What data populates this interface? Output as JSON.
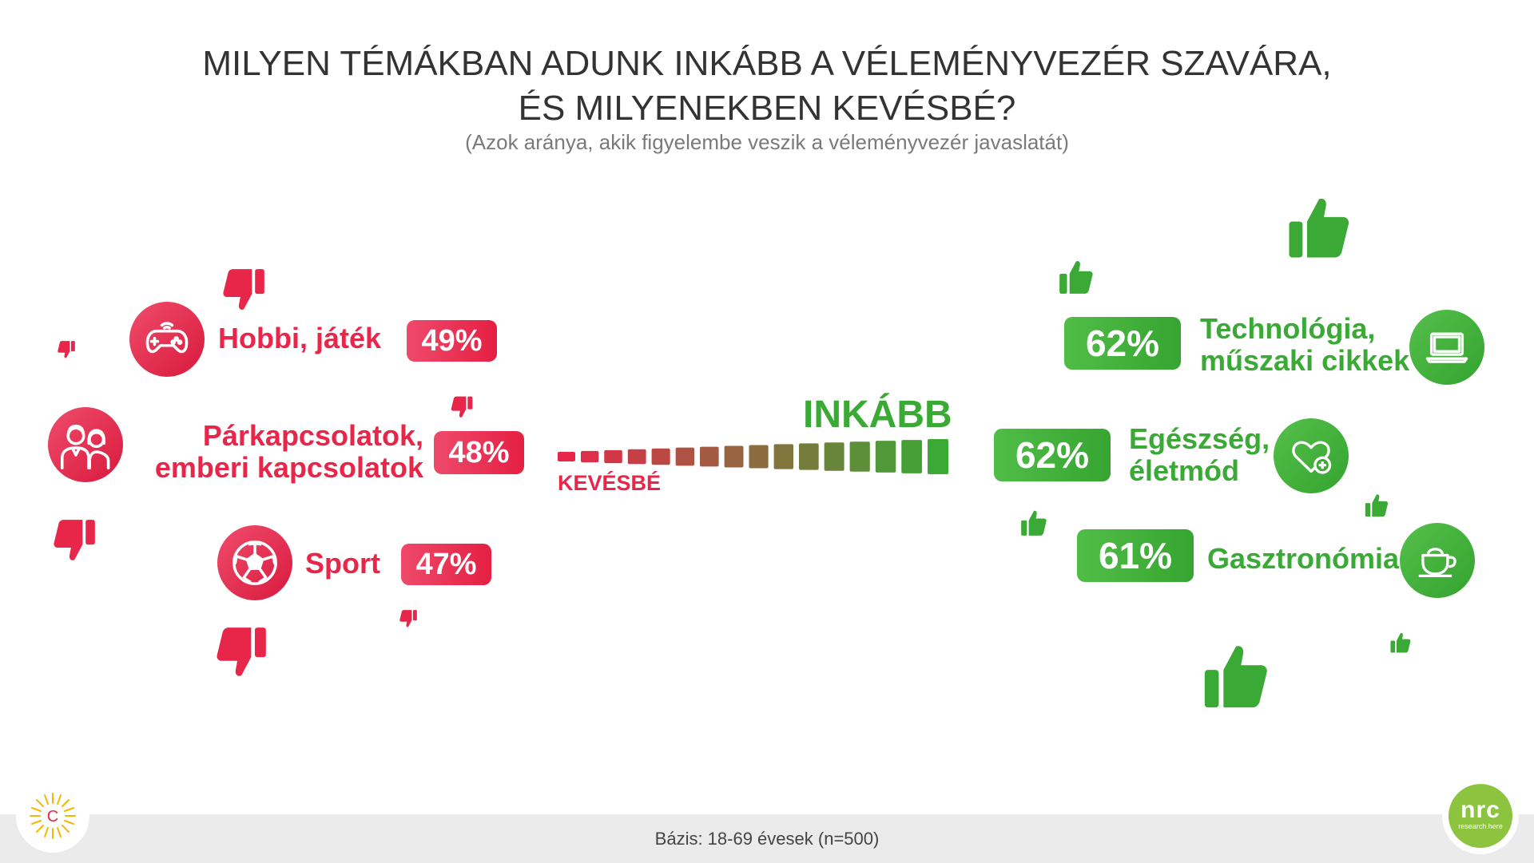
{
  "title": {
    "line1": "MILYEN TÉMÁKBAN ADUNK INKÁBB A VÉLEMÉNYVEZÉR SZAVÁRA,",
    "line2": "ÉS MILYENEKBEN KEVÉSBÉ?"
  },
  "subtitle": "(Azok aránya, akik figyelembe veszik a véleményvezér javaslatát)",
  "scale": {
    "low_label": "KEVÉSBÉ",
    "high_label": "INKÁBB"
  },
  "colors": {
    "negative": "#e8264a",
    "positive": "#3aa935",
    "title": "#333333"
  },
  "chart_data": {
    "type": "bar",
    "title": "MILYEN TÉMÁKBAN ADUNK INKÁBB A VÉLEMÉNYVEZÉR SZAVÁRA, ÉS MILYENEKBEN KEVÉSBÉ?",
    "subtitle": "(Azok aránya, akik figyelembe veszik a véleményvezér javaslatát)",
    "unit": "%",
    "kevesbe": [
      {
        "label": "Hobbi, játék",
        "value": 49,
        "display": "49%",
        "icon": "gamepad-icon"
      },
      {
        "label": "Párkapcsolatok, emberi kapcsolatok",
        "line1": "Párkapcsolatok,",
        "line2": "emberi kapcsolatok",
        "value": 48,
        "display": "48%",
        "icon": "couple-icon"
      },
      {
        "label": "Sport",
        "value": 47,
        "display": "47%",
        "icon": "soccer-ball-icon"
      }
    ],
    "inkabb": [
      {
        "label": "Technológia, műszaki cikkek",
        "line1": "Technológia,",
        "line2": "műszaki cikkek",
        "value": 62,
        "display": "62%",
        "icon": "laptop-icon"
      },
      {
        "label": "Egészség, életmód",
        "line1": "Egészség,",
        "line2": "életmód",
        "value": 62,
        "display": "62%",
        "icon": "heart-plus-icon"
      },
      {
        "label": "Gasztronómia",
        "value": 61,
        "display": "61%",
        "icon": "coffee-cup-icon"
      }
    ]
  },
  "footer": {
    "basis": "Bázis: 18-69 évesek (n=500)",
    "logo_right_text": "nrc",
    "logo_right_sub": "research.here",
    "logo_left_letter": "C"
  }
}
